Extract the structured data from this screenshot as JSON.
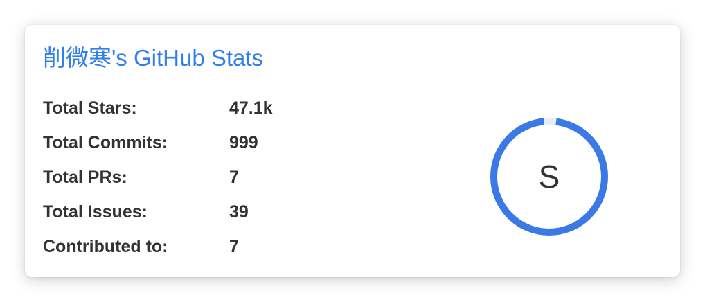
{
  "colors": {
    "title": "#2f80ed",
    "text": "#333333",
    "ring": "#3b7ae6",
    "ring_track": "#e8eef9"
  },
  "card": {
    "title": "削微寒's GitHub Stats",
    "stats": [
      {
        "label": "Total Stars:",
        "value": "47.1k"
      },
      {
        "label": "Total Commits:",
        "value": "999"
      },
      {
        "label": "Total PRs:",
        "value": "7"
      },
      {
        "label": "Total Issues:",
        "value": "39"
      },
      {
        "label": "Contributed to:",
        "value": "7"
      }
    ],
    "rank": {
      "letter": "S",
      "progress": 0.985
    }
  }
}
